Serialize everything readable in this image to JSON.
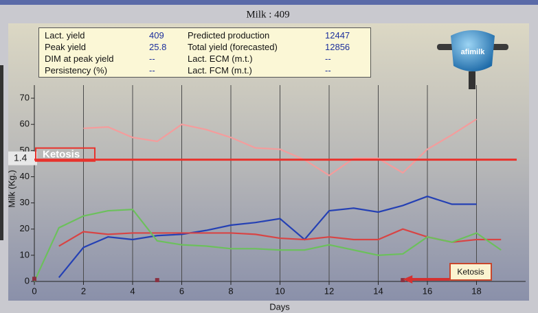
{
  "chart_data": {
    "type": "line",
    "title": "Milk : 409",
    "x_label": "Days",
    "y_label": "Milk  (Kg.)",
    "xlim": [
      0,
      20
    ],
    "ylim": [
      0,
      75
    ],
    "xticks": [
      0,
      2,
      4,
      6,
      8,
      10,
      12,
      14,
      16,
      18
    ],
    "yticks": [
      0,
      10,
      20,
      30,
      40,
      50,
      60,
      70
    ],
    "grid": "x",
    "series": [
      {
        "color": "#f49c9c",
        "x": [
          2,
          3,
          4,
          5,
          6,
          7,
          8,
          9,
          10,
          11,
          12,
          13,
          14,
          15,
          16,
          17,
          18
        ],
        "values": [
          58.5,
          59,
          55,
          53.5,
          60,
          58,
          55,
          51,
          50.5,
          46.5,
          40.5,
          47,
          47,
          41.5,
          50.5,
          56,
          62
        ]
      },
      {
        "color": "#2440b4",
        "x": [
          1,
          2,
          3,
          4,
          5,
          6,
          7,
          8,
          9,
          10,
          11,
          12,
          13,
          14,
          15,
          16,
          17,
          18
        ],
        "values": [
          1.5,
          13,
          17,
          16,
          17.5,
          18,
          19.5,
          21.5,
          22.5,
          24,
          16,
          27,
          28,
          26.5,
          29,
          32.5,
          29.5,
          29.5
        ]
      },
      {
        "color": "#d84444",
        "x": [
          1,
          2,
          3,
          4,
          5,
          6,
          7,
          8,
          9,
          10,
          11,
          12,
          13,
          14,
          15,
          16,
          17,
          18,
          19
        ],
        "values": [
          13.5,
          19,
          18,
          18.5,
          18.5,
          18.5,
          18.5,
          18.5,
          18,
          16.5,
          16,
          17,
          16,
          16,
          20,
          17,
          15,
          16,
          16
        ]
      },
      {
        "color": "#6cc05c",
        "x": [
          0,
          1,
          2,
          3,
          4,
          5,
          6,
          7,
          8,
          9,
          10,
          11,
          12,
          13,
          14,
          15,
          16,
          17,
          18,
          19
        ],
        "values": [
          0,
          20.5,
          25,
          27,
          27.5,
          15.5,
          14,
          13.5,
          12.5,
          12.5,
          12,
          12,
          14,
          12,
          10,
          10.5,
          17,
          15,
          18.5,
          12
        ]
      }
    ],
    "event_markers": {
      "color": "#8a3040",
      "x": [
        0,
        5,
        15
      ],
      "values": [
        1,
        0.5,
        0.5
      ]
    },
    "threshold": {
      "text": "Ketosis",
      "value": 46.5,
      "side_text": "1.4",
      "color": "#e8322c"
    },
    "callout": {
      "text": "Ketosis",
      "x": 15
    }
  },
  "info_table": {
    "rows": [
      [
        "Lact. yield",
        "409",
        "Predicted production",
        "12447"
      ],
      [
        "Peak yield",
        "25.8",
        "Total yield (forecasted)",
        "12856"
      ],
      [
        "DIM at peak yield",
        "--",
        "Lact. ECM (m.t.)",
        "--"
      ],
      [
        "Persistency (%)",
        "--",
        "Lact. FCM (m.t.)",
        "--"
      ]
    ]
  },
  "logo": "afimilk"
}
